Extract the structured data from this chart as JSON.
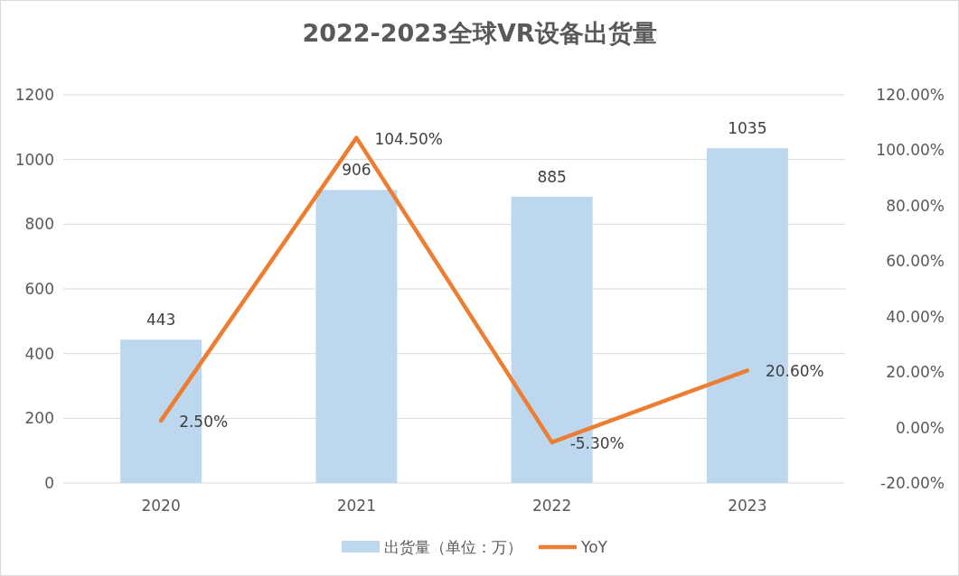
{
  "chart_data": {
    "type": "bar",
    "title": "2022-2023全球VR设备出货量",
    "categories": [
      "2020",
      "2021",
      "2022",
      "2023"
    ],
    "series": [
      {
        "name": "出货量（单位：万）",
        "color": "#bdd7ee",
        "values": [
          443,
          906,
          885,
          1035
        ],
        "value_labels": [
          "443",
          "906",
          "885",
          "1035"
        ]
      },
      {
        "name": "YoY",
        "type": "line",
        "axis": "y2",
        "color": "#ed7d31",
        "values": [
          2.5,
          104.5,
          -5.3,
          20.6
        ],
        "value_labels": [
          "2.50%",
          "104.50%",
          "-5.30%",
          "20.60%"
        ]
      }
    ],
    "ylim": [
      0,
      1200
    ],
    "yticks": [
      0,
      200,
      400,
      600,
      800,
      1000,
      1200
    ],
    "y2lim": [
      -20,
      120
    ],
    "y2ticks": [
      {
        "value": -20,
        "label": "-20.00%"
      },
      {
        "value": 0,
        "label": "0.00%"
      },
      {
        "value": 20,
        "label": "20.00%"
      },
      {
        "value": 40,
        "label": "40.00%"
      },
      {
        "value": 60,
        "label": "60.00%"
      },
      {
        "value": 80,
        "label": "80.00%"
      },
      {
        "value": 100,
        "label": "100.00%"
      },
      {
        "value": 120,
        "label": "120.00%"
      }
    ],
    "grid": "y",
    "legend": "bottom"
  }
}
